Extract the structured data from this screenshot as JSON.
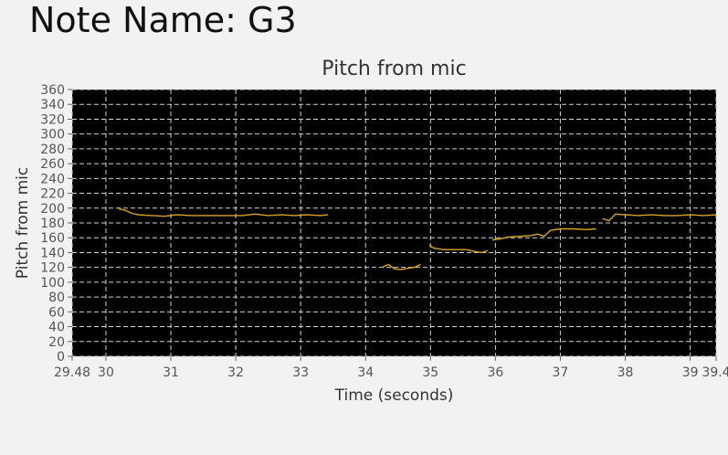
{
  "header": {
    "note_label": "Note Name: G3"
  },
  "chart_data": {
    "type": "line",
    "title": "Pitch from mic",
    "xlabel": "Time (seconds)",
    "ylabel": "Pitch from mic",
    "xlim": [
      29.48,
      39.4
    ],
    "ylim": [
      0,
      360
    ],
    "x_ticks": [
      29.48,
      30,
      31,
      32,
      33,
      34,
      35,
      36,
      37,
      38,
      39,
      39.4
    ],
    "x_tick_labels": [
      "29.48",
      "30",
      "31",
      "32",
      "33",
      "34",
      "35",
      "36",
      "37",
      "38",
      "39",
      "39.4"
    ],
    "y_ticks": [
      0,
      20,
      40,
      60,
      80,
      100,
      120,
      140,
      160,
      180,
      200,
      220,
      240,
      260,
      280,
      300,
      320,
      340,
      360
    ],
    "grid": true,
    "background": "#000000",
    "line_color": "#d9a520",
    "series": [
      {
        "segments": [
          {
            "x": [
              30.2,
              30.3,
              30.4,
              30.5,
              30.7,
              30.9,
              31.1,
              31.3,
              31.5,
              31.7,
              31.9,
              32.1,
              32.3,
              32.5,
              32.7,
              32.9,
              33.1,
              33.3,
              33.42
            ],
            "y": [
              199,
              197,
              193,
              191,
              190,
              189,
              191,
              190,
              190,
              190,
              190,
              190,
              192,
              190,
              191,
              190,
              191,
              190,
              191
            ]
          },
          {
            "x": [
              34.25,
              34.35,
              34.45,
              34.55,
              34.65,
              34.75,
              34.85
            ],
            "y": [
              120,
              124,
              118,
              117,
              119,
              120,
              124
            ]
          },
          {
            "x": [
              34.98,
              35.05,
              35.2,
              35.4,
              35.55,
              35.7,
              35.8,
              35.88
            ],
            "y": [
              150,
              146,
              144,
              144,
              144,
              141,
              140,
              143
            ]
          },
          {
            "x": [
              35.95,
              36.05,
              36.2,
              36.4,
              36.55,
              36.65,
              36.75,
              36.85,
              37.0,
              37.2,
              37.4,
              37.55
            ],
            "y": [
              157,
              158,
              161,
              162,
              163,
              165,
              162,
              170,
              172,
              172,
              171,
              172
            ]
          },
          {
            "x": [
              37.65,
              37.75,
              37.85,
              38.0,
              38.2,
              38.4,
              38.6,
              38.8,
              39.0,
              39.2,
              39.4
            ],
            "y": [
              186,
              183,
              192,
              191,
              190,
              191,
              190,
              190,
              191,
              190,
              191
            ]
          }
        ]
      }
    ]
  }
}
